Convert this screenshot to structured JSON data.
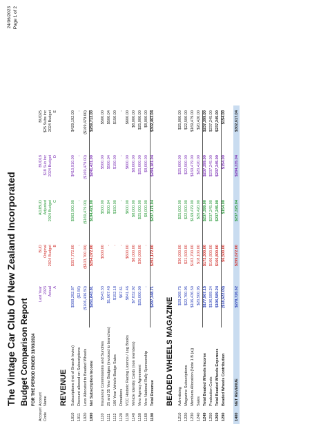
{
  "header": {
    "title": "The Vintage Car Club Of New Zealand Incorporated",
    "subtitle": "Budget Comparison Report",
    "period": "FOR THE PERIOD ENDED 31/03/2024",
    "date": "24/06/2023",
    "page": "Page 1 of 2"
  },
  "columns": {
    "account_code": [
      "Account",
      "Code"
    ],
    "account_name": [
      "Account",
      "Name"
    ],
    "headers": [
      [
        "Last Year",
        "2023",
        "Actual",
        "A"
      ],
      [
        "BUD",
        "Original",
        "2024 Budget",
        "B"
      ],
      [
        "ADJBUD",
        "Adjusted",
        "2024 Budget",
        "C"
      ],
      [
        "BUD18",
        "$18 Sub Inc",
        "2024 Budget",
        "D"
      ],
      [
        "BUD25",
        "$25 Subs Inc",
        "2024 Budget",
        "E"
      ]
    ]
  },
  "sections": {
    "revenue": "REVENUE",
    "beaded": "BEADED WHEELS MAGAZINE"
  },
  "rows": [
    {
      "code": "1010",
      "name": "Subscriptions (net of Branch levies)",
      "vals": [
        "$368,282.87",
        "$357,772.00",
        "$363,900.00",
        "$410,910.00",
        "$429,192.00"
      ]
    },
    {
      "code": "1011",
      "name": "Discount allowed on Subscriptions",
      "vals": [
        "($2.56)",
        "-",
        "-",
        "-",
        "-"
      ]
    },
    {
      "code": "1020",
      "name": "Less Allocated to Beaded Wheels",
      "vals": [
        "($106,436.50)",
        "($103,700.00)",
        "($169,479.00)",
        "($169,479.00)",
        "($169,479.00)"
      ]
    },
    {
      "code": "1090",
      "name": "Net Subscription Income",
      "vals": [
        "$261,843.81",
        "$254,072.00",
        "$194,421.00",
        "$241,431.00",
        "$259,713.00"
      ],
      "bold": true
    },
    {
      "code": "1110",
      "name": "Insurance Commissions and Sundries",
      "vals": [
        "$543.33",
        "$500.00",
        "$500.00",
        "$500.00",
        "$500.00"
      ]
    },
    {
      "code": "1111",
      "name": "25 and 35 Year Badges (invoiced to branches)",
      "vals": [
        "$1,067.40",
        "-",
        "$500.04",
        "$500.04",
        "$500.04"
      ]
    },
    {
      "code": "1112",
      "name": "100 Year Vehicle Badge Sales",
      "vals": [
        "$152.18",
        "-",
        "$150.00",
        "$150.00",
        "$150.00"
      ]
    },
    {
      "code": "1120",
      "name": "Donations",
      "vals": [
        "$67.61",
        "-",
        "-",
        "-",
        "-"
      ]
    },
    {
      "code": "1130",
      "name": "VCC Historic Racing Licence / Log Books",
      "vals": [
        "$841.46",
        "$600.00",
        "$600.00",
        "$600.00",
        "$600.00"
      ]
    },
    {
      "code": "1140",
      "name": "Vehicle Identity Cards (non members)",
      "vals": [
        "$7,832.92",
        "$8,000.00",
        "$8,000.00",
        "$8,000.00",
        "$8,000.00"
      ]
    },
    {
      "code": "1150",
      "name": "Vero Agency Agreement",
      "vals": [
        "$25,000.00",
        "$30,000.00",
        "$25,000.00",
        "$25,000.00",
        "$25,000.00"
      ]
    },
    {
      "code": "1160",
      "name": "Vero National Rally Sponsorship",
      "vals": [
        "-",
        "-",
        "$8,000.00",
        "$8,000.00",
        "$8,000.00"
      ]
    },
    {
      "code": "1190",
      "name": "Total Revenue",
      "vals": [
        "$297,348.71",
        "$293,172.00",
        "$237,171.04",
        "$284,181.04",
        "$302,463.04"
      ],
      "bold": true
    },
    {
      "code": "1210",
      "name": "Advertising",
      "vals": [
        "$28,268.75",
        "$30,000.00",
        "$25,000.00",
        "$25,000.00",
        "$25,000.00"
      ]
    },
    {
      "code": "1220",
      "name": "Magazine Subscriptions",
      "vals": [
        "$22,760.95",
        "$21,500.00",
        "$22,500.00",
        "$22,500.00",
        "$22,500.00"
      ]
    },
    {
      "code": "1230",
      "name": "Members Allocation (Note 1 B (a))",
      "vals": [
        "$106,436.50",
        "$103,700.00",
        "$169,479.00",
        "$169,479.00",
        "$169,479.00"
      ]
    },
    {
      "code": "1240",
      "name": "Sales",
      "vals": [
        "$20,500.95",
        "$18,100.00",
        "$20,420.00",
        "$20,420.00",
        "$20,420.00"
      ]
    },
    {
      "code": "1249",
      "name": "Total Beaded Wheels Income",
      "vals": [
        "$177,967.15",
        "$173,300.00",
        "$237,399.00",
        "$237,399.00",
        "$237,399.00"
      ],
      "bold": true
    },
    {
      "code": "1250",
      "name": "Production Costs",
      "vals": [
        "$196,589.24",
        "$166,800.00",
        "$237,245.00",
        "$237,245.00",
        "$237,245.00"
      ]
    },
    {
      "code": "1269",
      "name": "Total Beaded Wheels Expenses",
      "vals": [
        "$196,589.24",
        "$166,800.00",
        "$237,245.00",
        "$237,245.00",
        "$237,245.00"
      ],
      "bold": true
    },
    {
      "code": "1290",
      "name": "Beaded Wheels Contribution",
      "vals": [
        "($18,622.09)",
        "$6,500.00",
        "$154.00",
        "$154.00",
        "$154.00"
      ],
      "bold": true
    },
    {
      "code": "1400",
      "name": "NET REVENUE",
      "vals": [
        "$278,726.62",
        "$299,672.00",
        "$237,325.04",
        "$284,335.04",
        "$302,617.04"
      ],
      "bold": true
    }
  ]
}
